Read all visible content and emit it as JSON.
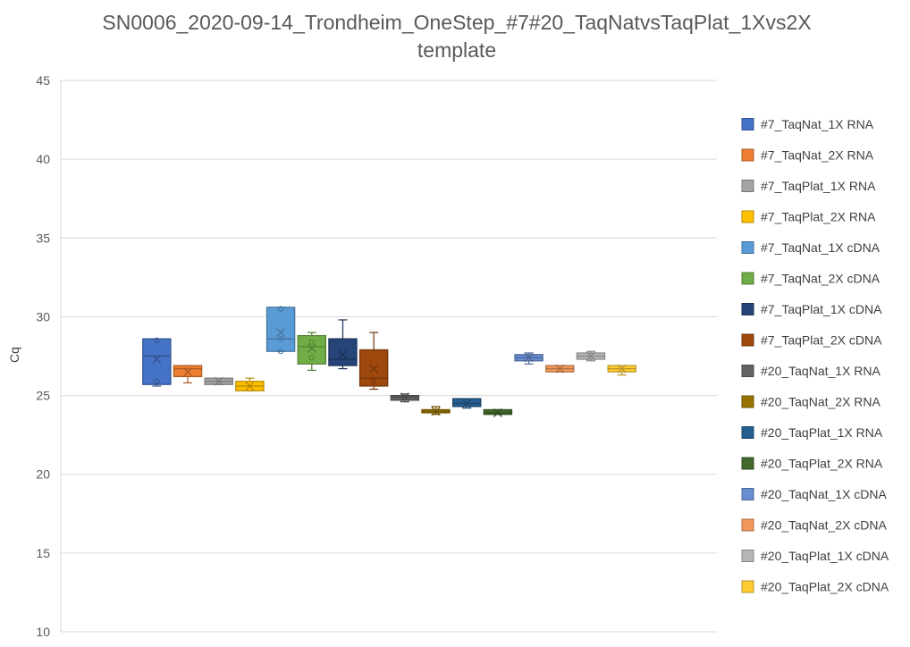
{
  "chart_data": {
    "type": "box",
    "title": [
      "SN0006_2020-09-14_Trondheim_OneStep_#7#20_TaqNatvsTaqPlat_1Xvs2X",
      "template"
    ],
    "xlabel": "",
    "ylabel": "Cq",
    "ylim": [
      10,
      45
    ],
    "yticks": [
      10,
      15,
      20,
      25,
      30,
      35,
      40,
      45
    ],
    "grid": true,
    "legend_position": "right",
    "series": [
      {
        "name": "#7_TaqNat_1X RNA",
        "color": "#4472C4",
        "min": 25.6,
        "q1": 25.7,
        "median": 27.5,
        "q3": 28.6,
        "max": 28.6,
        "mean": 27.3,
        "points": [
          25.9,
          28.5
        ]
      },
      {
        "name": "#7_TaqNat_2X RNA",
        "color": "#ED7D31",
        "min": 25.8,
        "q1": 26.2,
        "median": 26.7,
        "q3": 26.9,
        "max": 26.9,
        "mean": 26.5,
        "points": []
      },
      {
        "name": "#7_TaqPlat_1X RNA",
        "color": "#A5A5A5",
        "min": 25.7,
        "q1": 25.7,
        "median": 25.9,
        "q3": 26.1,
        "max": 26.1,
        "mean": 25.9,
        "points": []
      },
      {
        "name": "#7_TaqPlat_2X RNA",
        "color": "#FFC000",
        "min": 25.3,
        "q1": 25.3,
        "median": 25.6,
        "q3": 25.9,
        "max": 26.1,
        "mean": 25.6,
        "points": []
      },
      {
        "name": "#7_TaqNat_1X cDNA",
        "color": "#5B9BD5",
        "min": 27.8,
        "q1": 27.8,
        "median": 28.6,
        "q3": 30.6,
        "max": 30.6,
        "mean": 29.0,
        "points": [
          28.6,
          27.8,
          30.5
        ]
      },
      {
        "name": "#7_TaqNat_2X cDNA",
        "color": "#70AD47",
        "min": 26.6,
        "q1": 27.0,
        "median": 28.1,
        "q3": 28.8,
        "max": 29.0,
        "mean": 28.0,
        "points": [
          28.4,
          27.4
        ]
      },
      {
        "name": "#7_TaqPlat_1X cDNA",
        "color": "#264478",
        "min": 26.7,
        "q1": 26.9,
        "median": 27.3,
        "q3": 28.6,
        "max": 29.8,
        "mean": 27.6,
        "points": []
      },
      {
        "name": "#7_TaqPlat_2X cDNA",
        "color": "#9E480E",
        "min": 25.4,
        "q1": 25.6,
        "median": 26.1,
        "q3": 27.9,
        "max": 29.0,
        "mean": 26.7,
        "points": [
          25.9
        ]
      },
      {
        "name": "#20_TaqNat_1X RNA",
        "color": "#636363",
        "min": 24.6,
        "q1": 24.7,
        "median": 24.9,
        "q3": 25.0,
        "max": 25.1,
        "mean": 24.9,
        "points": []
      },
      {
        "name": "#20_TaqNat_2X RNA",
        "color": "#997300",
        "min": 23.8,
        "q1": 23.9,
        "median": 24.0,
        "q3": 24.1,
        "max": 24.3,
        "mean": 24.0,
        "points": []
      },
      {
        "name": "#20_TaqPlat_1X RNA",
        "color": "#255E91",
        "min": 24.2,
        "q1": 24.3,
        "median": 24.5,
        "q3": 24.8,
        "max": 24.8,
        "mean": 24.5,
        "points": []
      },
      {
        "name": "#20_TaqPlat_2X RNA",
        "color": "#43682B",
        "min": 23.8,
        "q1": 23.8,
        "median": 23.9,
        "q3": 24.1,
        "max": 24.1,
        "mean": 23.9,
        "points": []
      },
      {
        "name": "#20_TaqNat_1X cDNA",
        "color": "#698ED0",
        "min": 27.0,
        "q1": 27.2,
        "median": 27.4,
        "q3": 27.6,
        "max": 27.7,
        "mean": 27.4,
        "points": []
      },
      {
        "name": "#20_TaqNat_2X cDNA",
        "color": "#F1975A",
        "min": 26.5,
        "q1": 26.5,
        "median": 26.7,
        "q3": 26.9,
        "max": 26.9,
        "mean": 26.7,
        "points": []
      },
      {
        "name": "#20_TaqPlat_1X cDNA",
        "color": "#B7B7B7",
        "min": 27.2,
        "q1": 27.3,
        "median": 27.5,
        "q3": 27.7,
        "max": 27.8,
        "mean": 27.5,
        "points": []
      },
      {
        "name": "#20_TaqPlat_2X cDNA",
        "color": "#FFCD33",
        "min": 26.3,
        "q1": 26.5,
        "median": 26.7,
        "q3": 26.9,
        "max": 26.9,
        "mean": 26.7,
        "points": []
      }
    ]
  }
}
